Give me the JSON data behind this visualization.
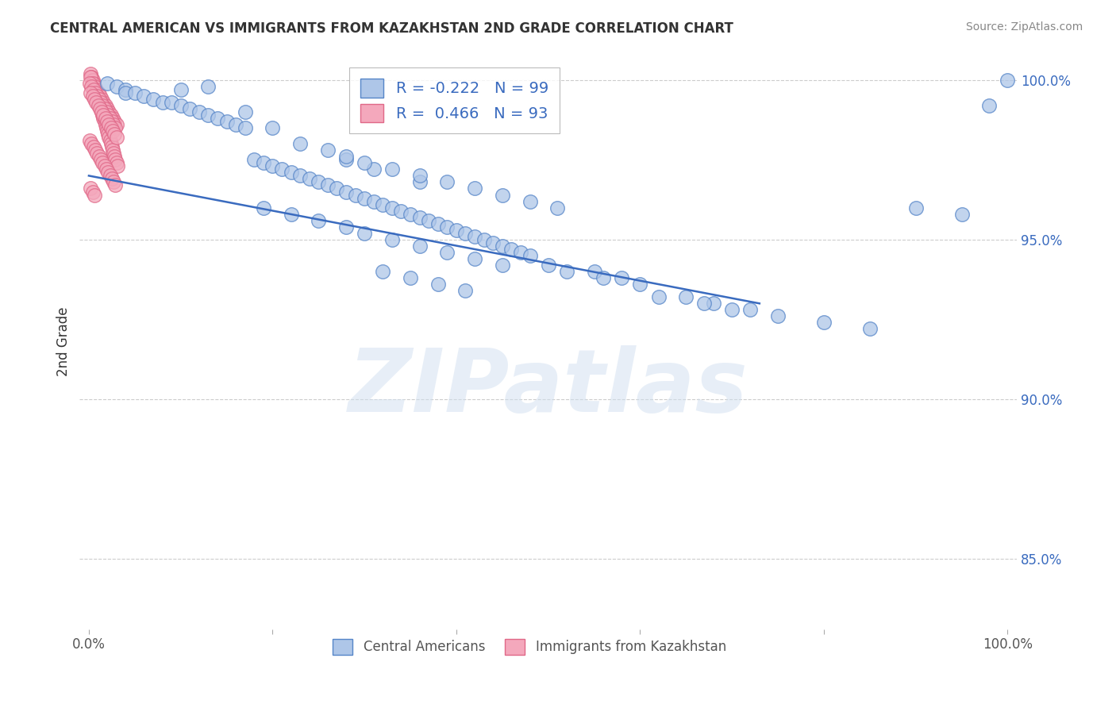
{
  "title": "CENTRAL AMERICAN VS IMMIGRANTS FROM KAZAKHSTAN 2ND GRADE CORRELATION CHART",
  "source": "Source: ZipAtlas.com",
  "ylabel": "2nd Grade",
  "xlim": [
    -0.01,
    1.01
  ],
  "ylim": [
    0.828,
    1.008
  ],
  "xticks": [
    0.0,
    0.2,
    0.4,
    0.6,
    0.8,
    1.0
  ],
  "xtick_labels": [
    "0.0%",
    "",
    "",
    "",
    "",
    "100.0%"
  ],
  "yticks": [
    0.85,
    0.9,
    0.95,
    1.0
  ],
  "ytick_labels": [
    "85.0%",
    "90.0%",
    "95.0%",
    "100.0%"
  ],
  "legend_blue_label": "R = -0.222   N = 99",
  "legend_pink_label": "R =  0.466   N = 93",
  "blue_color": "#aec6e8",
  "blue_edge_color": "#5585c8",
  "pink_color": "#f4a8bc",
  "pink_edge_color": "#e06888",
  "blue_line_color": "#3a6bbf",
  "trend_x_start": 0.0,
  "trend_x_end": 0.73,
  "trend_y_start": 0.97,
  "trend_y_end": 0.93,
  "watermark": "ZIPatlas",
  "blue_scatter_x": [
    0.02,
    0.03,
    0.04,
    0.04,
    0.05,
    0.06,
    0.07,
    0.08,
    0.09,
    0.1,
    0.1,
    0.11,
    0.12,
    0.13,
    0.13,
    0.14,
    0.15,
    0.16,
    0.17,
    0.17,
    0.18,
    0.19,
    0.2,
    0.2,
    0.21,
    0.22,
    0.23,
    0.23,
    0.24,
    0.25,
    0.26,
    0.27,
    0.28,
    0.28,
    0.29,
    0.3,
    0.31,
    0.31,
    0.32,
    0.33,
    0.34,
    0.35,
    0.36,
    0.36,
    0.37,
    0.38,
    0.39,
    0.4,
    0.41,
    0.42,
    0.43,
    0.44,
    0.45,
    0.46,
    0.47,
    0.48,
    0.32,
    0.35,
    0.38,
    0.41,
    0.26,
    0.28,
    0.3,
    0.33,
    0.36,
    0.39,
    0.42,
    0.45,
    0.48,
    0.51,
    0.19,
    0.22,
    0.25,
    0.28,
    0.3,
    0.33,
    0.36,
    0.39,
    0.42,
    0.45,
    0.55,
    0.58,
    0.6,
    0.65,
    0.68,
    0.72,
    0.75,
    0.8,
    0.85,
    0.9,
    0.95,
    0.98,
    1.0,
    0.5,
    0.52,
    0.56,
    0.62,
    0.67,
    0.7
  ],
  "blue_scatter_y": [
    0.999,
    0.998,
    0.997,
    0.996,
    0.996,
    0.995,
    0.994,
    0.993,
    0.993,
    0.992,
    0.997,
    0.991,
    0.99,
    0.989,
    0.998,
    0.988,
    0.987,
    0.986,
    0.985,
    0.99,
    0.975,
    0.974,
    0.973,
    0.985,
    0.972,
    0.971,
    0.97,
    0.98,
    0.969,
    0.968,
    0.967,
    0.966,
    0.965,
    0.975,
    0.964,
    0.963,
    0.962,
    0.972,
    0.961,
    0.96,
    0.959,
    0.958,
    0.957,
    0.968,
    0.956,
    0.955,
    0.954,
    0.953,
    0.952,
    0.951,
    0.95,
    0.949,
    0.948,
    0.947,
    0.946,
    0.945,
    0.94,
    0.938,
    0.936,
    0.934,
    0.978,
    0.976,
    0.974,
    0.972,
    0.97,
    0.968,
    0.966,
    0.964,
    0.962,
    0.96,
    0.96,
    0.958,
    0.956,
    0.954,
    0.952,
    0.95,
    0.948,
    0.946,
    0.944,
    0.942,
    0.94,
    0.938,
    0.936,
    0.932,
    0.93,
    0.928,
    0.926,
    0.924,
    0.922,
    0.96,
    0.958,
    0.992,
    1.0,
    0.942,
    0.94,
    0.938,
    0.932,
    0.93,
    0.928
  ],
  "pink_scatter_x": [
    0.002,
    0.003,
    0.004,
    0.005,
    0.006,
    0.007,
    0.008,
    0.009,
    0.01,
    0.011,
    0.012,
    0.013,
    0.014,
    0.015,
    0.016,
    0.017,
    0.018,
    0.019,
    0.02,
    0.021,
    0.022,
    0.023,
    0.024,
    0.025,
    0.026,
    0.027,
    0.028,
    0.029,
    0.03,
    0.031,
    0.002,
    0.004,
    0.006,
    0.008,
    0.01,
    0.012,
    0.014,
    0.016,
    0.018,
    0.02,
    0.022,
    0.024,
    0.026,
    0.028,
    0.03,
    0.001,
    0.003,
    0.005,
    0.007,
    0.009,
    0.011,
    0.013,
    0.015,
    0.017,
    0.019,
    0.021,
    0.023,
    0.025,
    0.027,
    0.029,
    0.002,
    0.004,
    0.006,
    0.008,
    0.01,
    0.012,
    0.014,
    0.016,
    0.018,
    0.02,
    0.022,
    0.024,
    0.026,
    0.028,
    0.03,
    0.001,
    0.003,
    0.005,
    0.007,
    0.009,
    0.011,
    0.013,
    0.015,
    0.017,
    0.019,
    0.021,
    0.023,
    0.025,
    0.027,
    0.029,
    0.002,
    0.004,
    0.006
  ],
  "pink_scatter_y": [
    1.002,
    1.001,
    1.0,
    0.999,
    0.998,
    0.997,
    0.996,
    0.995,
    0.994,
    0.993,
    0.992,
    0.991,
    0.99,
    0.989,
    0.988,
    0.987,
    0.986,
    0.985,
    0.984,
    0.983,
    0.982,
    0.981,
    0.98,
    0.979,
    0.978,
    0.977,
    0.976,
    0.975,
    0.974,
    0.973,
    1.001,
    0.999,
    0.998,
    0.997,
    0.996,
    0.995,
    0.994,
    0.993,
    0.992,
    0.991,
    0.99,
    0.989,
    0.988,
    0.987,
    0.986,
    0.999,
    0.998,
    0.997,
    0.996,
    0.995,
    0.994,
    0.993,
    0.992,
    0.991,
    0.99,
    0.989,
    0.988,
    0.987,
    0.986,
    0.985,
    0.996,
    0.995,
    0.994,
    0.993,
    0.992,
    0.991,
    0.99,
    0.989,
    0.988,
    0.987,
    0.986,
    0.985,
    0.984,
    0.983,
    0.982,
    0.981,
    0.98,
    0.979,
    0.978,
    0.977,
    0.976,
    0.975,
    0.974,
    0.973,
    0.972,
    0.971,
    0.97,
    0.969,
    0.968,
    0.967,
    0.966,
    0.965,
    0.964
  ]
}
